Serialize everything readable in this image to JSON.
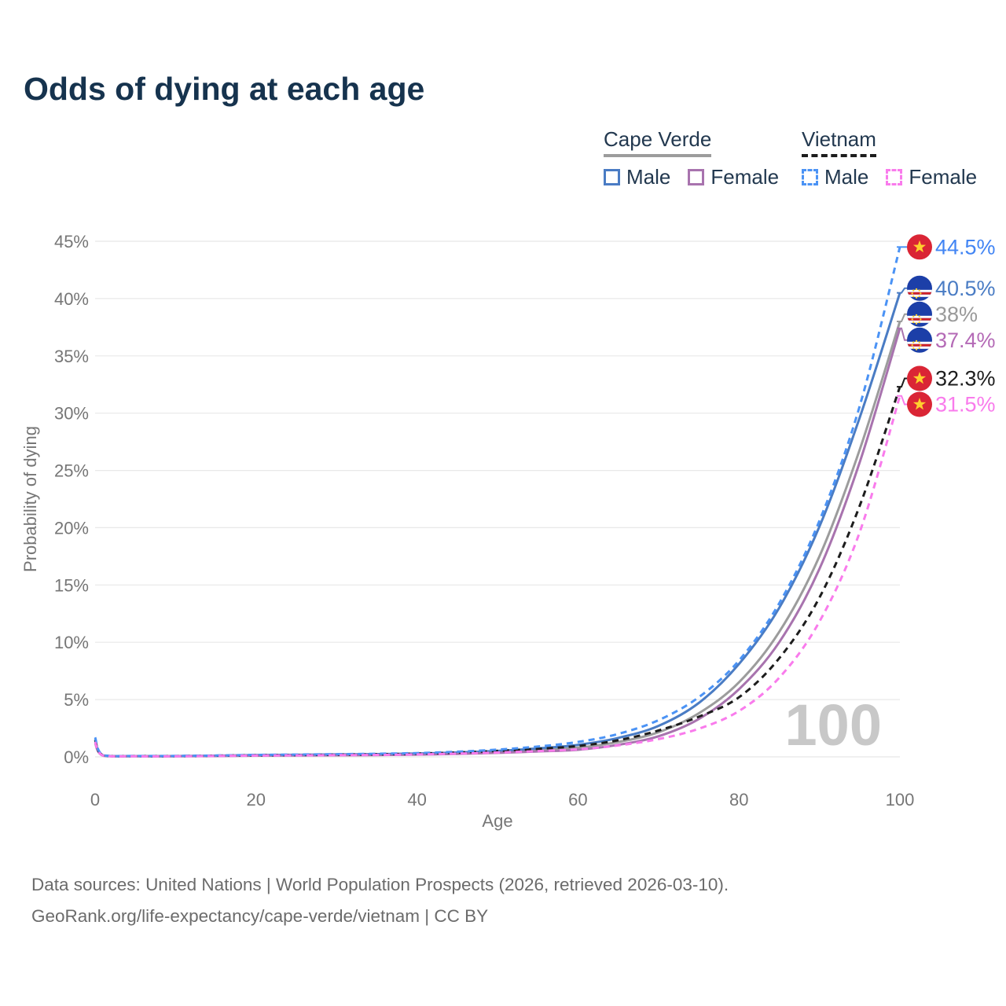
{
  "title": "Odds of dying at each age",
  "legend": {
    "groups": [
      {
        "label": "Cape Verde",
        "line_style": "solid",
        "line_color": "#9c9c9c",
        "items": [
          {
            "label": "Male",
            "series": "cv_male"
          },
          {
            "label": "Female",
            "series": "cv_female"
          }
        ]
      },
      {
        "label": "Vietnam",
        "line_style": "dashed",
        "line_color": "#1d1d1d",
        "items": [
          {
            "label": "Male",
            "series": "vn_male"
          },
          {
            "label": "Female",
            "series": "vn_female"
          }
        ]
      }
    ]
  },
  "chart_data": {
    "type": "line",
    "title": "Odds of dying at each age",
    "xlabel": "Age",
    "ylabel": "Probability of dying",
    "xlim": [
      0,
      100
    ],
    "ylim": [
      0,
      45
    ],
    "x_ticks": [
      0,
      20,
      40,
      60,
      80,
      100
    ],
    "y_ticks": [
      0,
      5,
      10,
      15,
      20,
      25,
      30,
      35,
      40,
      45
    ],
    "y_tick_suffix": "%",
    "grid": "horizontal",
    "legend_position": "top-right",
    "watermark": "100",
    "series": [
      {
        "id": "cv_both",
        "name": "Cape Verde (both sexes)",
        "country": "Cape Verde",
        "sex": "Both",
        "color": "#9c9c9c",
        "label_color": "#9a9a9a",
        "dashed": false,
        "width": 3,
        "end_label": "38%",
        "flag": "cape-verde",
        "points": [
          [
            0,
            1.4
          ],
          [
            1,
            0.12
          ],
          [
            5,
            0.06
          ],
          [
            10,
            0.06
          ],
          [
            15,
            0.09
          ],
          [
            20,
            0.13
          ],
          [
            25,
            0.15
          ],
          [
            30,
            0.18
          ],
          [
            35,
            0.2
          ],
          [
            40,
            0.25
          ],
          [
            45,
            0.32
          ],
          [
            50,
            0.43
          ],
          [
            55,
            0.58
          ],
          [
            60,
            0.8
          ],
          [
            65,
            1.3
          ],
          [
            70,
            2.15
          ],
          [
            75,
            3.8
          ],
          [
            80,
            6.5
          ],
          [
            85,
            10.9
          ],
          [
            90,
            17.5
          ],
          [
            95,
            26.8
          ],
          [
            100,
            38.0
          ]
        ]
      },
      {
        "id": "cv_male",
        "name": "Cape Verde Male",
        "country": "Cape Verde",
        "sex": "Male",
        "color": "#4a7cc4",
        "label_color": "#4a7cc4",
        "dashed": false,
        "width": 3,
        "end_label": "40.5%",
        "flag": "cape-verde",
        "points": [
          [
            0,
            1.5
          ],
          [
            1,
            0.13
          ],
          [
            5,
            0.07
          ],
          [
            10,
            0.07
          ],
          [
            15,
            0.1
          ],
          [
            20,
            0.15
          ],
          [
            25,
            0.18
          ],
          [
            30,
            0.21
          ],
          [
            35,
            0.24
          ],
          [
            40,
            0.29
          ],
          [
            45,
            0.38
          ],
          [
            50,
            0.52
          ],
          [
            55,
            0.74
          ],
          [
            60,
            1.05
          ],
          [
            65,
            1.65
          ],
          [
            70,
            2.7
          ],
          [
            75,
            4.7
          ],
          [
            80,
            8.1
          ],
          [
            85,
            13.0
          ],
          [
            90,
            20.1
          ],
          [
            95,
            29.6
          ],
          [
            100,
            40.5
          ]
        ]
      },
      {
        "id": "cv_female",
        "name": "Cape Verde Female",
        "country": "Cape Verde",
        "sex": "Female",
        "color": "#a873ae",
        "label_color": "#b46ab6",
        "dashed": false,
        "width": 3,
        "end_label": "37.4%",
        "flag": "cape-verde",
        "points": [
          [
            0,
            1.2
          ],
          [
            1,
            0.1
          ],
          [
            5,
            0.05
          ],
          [
            10,
            0.05
          ],
          [
            15,
            0.07
          ],
          [
            20,
            0.1
          ],
          [
            25,
            0.12
          ],
          [
            30,
            0.14
          ],
          [
            35,
            0.16
          ],
          [
            40,
            0.2
          ],
          [
            45,
            0.26
          ],
          [
            50,
            0.35
          ],
          [
            55,
            0.47
          ],
          [
            60,
            0.62
          ],
          [
            65,
            1.05
          ],
          [
            70,
            1.8
          ],
          [
            75,
            3.3
          ],
          [
            80,
            5.9
          ],
          [
            85,
            10.0
          ],
          [
            90,
            16.4
          ],
          [
            95,
            25.7
          ],
          [
            100,
            37.4
          ]
        ]
      },
      {
        "id": "vn_both",
        "name": "Vietnam (both sexes)",
        "country": "Vietnam",
        "sex": "Both",
        "color": "#1d1d1d",
        "label_color": "#1d1d1d",
        "dashed": true,
        "width": 3,
        "end_label": "32.3%",
        "flag": "vietnam",
        "points": [
          [
            0,
            1.5
          ],
          [
            1,
            0.13
          ],
          [
            5,
            0.07
          ],
          [
            10,
            0.07
          ],
          [
            15,
            0.1
          ],
          [
            20,
            0.14
          ],
          [
            25,
            0.16
          ],
          [
            30,
            0.19
          ],
          [
            35,
            0.22
          ],
          [
            40,
            0.28
          ],
          [
            45,
            0.38
          ],
          [
            50,
            0.52
          ],
          [
            55,
            0.7
          ],
          [
            60,
            0.95
          ],
          [
            65,
            1.45
          ],
          [
            70,
            2.3
          ],
          [
            75,
            3.5
          ],
          [
            80,
            5.2
          ],
          [
            85,
            8.6
          ],
          [
            90,
            13.9
          ],
          [
            95,
            21.9
          ],
          [
            100,
            32.3
          ]
        ]
      },
      {
        "id": "vn_male",
        "name": "Vietnam Male",
        "country": "Vietnam",
        "sex": "Male",
        "color": "#4b93f5",
        "label_color": "#4285f4",
        "dashed": true,
        "width": 3,
        "end_label": "44.5%",
        "flag": "vietnam",
        "points": [
          [
            0,
            1.7
          ],
          [
            1,
            0.15
          ],
          [
            5,
            0.08
          ],
          [
            10,
            0.08
          ],
          [
            15,
            0.12
          ],
          [
            20,
            0.17
          ],
          [
            25,
            0.2
          ],
          [
            30,
            0.23
          ],
          [
            35,
            0.27
          ],
          [
            40,
            0.33
          ],
          [
            45,
            0.45
          ],
          [
            50,
            0.63
          ],
          [
            55,
            0.9
          ],
          [
            60,
            1.3
          ],
          [
            65,
            2.0
          ],
          [
            70,
            3.2
          ],
          [
            75,
            5.2
          ],
          [
            80,
            8.4
          ],
          [
            85,
            13.4
          ],
          [
            90,
            20.6
          ],
          [
            95,
            30.6
          ],
          [
            100,
            44.5
          ]
        ]
      },
      {
        "id": "vn_female",
        "name": "Vietnam Female",
        "country": "Vietnam",
        "sex": "Female",
        "color": "#f97bec",
        "label_color": "#f97bec",
        "dashed": true,
        "width": 3,
        "end_label": "31.5%",
        "flag": "vietnam",
        "points": [
          [
            0,
            1.3
          ],
          [
            1,
            0.11
          ],
          [
            5,
            0.05
          ],
          [
            10,
            0.05
          ],
          [
            15,
            0.08
          ],
          [
            20,
            0.11
          ],
          [
            25,
            0.13
          ],
          [
            30,
            0.15
          ],
          [
            35,
            0.17
          ],
          [
            40,
            0.21
          ],
          [
            45,
            0.28
          ],
          [
            50,
            0.38
          ],
          [
            55,
            0.5
          ],
          [
            60,
            0.66
          ],
          [
            65,
            1.0
          ],
          [
            70,
            1.55
          ],
          [
            75,
            2.45
          ],
          [
            80,
            4.0
          ],
          [
            85,
            6.9
          ],
          [
            90,
            11.8
          ],
          [
            95,
            19.6
          ],
          [
            100,
            31.5
          ]
        ]
      }
    ],
    "flag_colors": {
      "vietnam_red": "#da2535",
      "vietnam_star": "#ffd02e",
      "cape_verde_blue": "#1c3fa8",
      "cape_verde_red": "#cf2027",
      "cape_verde_white": "#ffffff",
      "cape_verde_star": "#ffd02e"
    }
  },
  "footer": {
    "line1": "Data sources: United Nations | World Population Prospects (2026, retrieved 2026-03-10).",
    "line2": "GeoRank.org/life-expectancy/cape-verde/vietnam | CC BY"
  }
}
